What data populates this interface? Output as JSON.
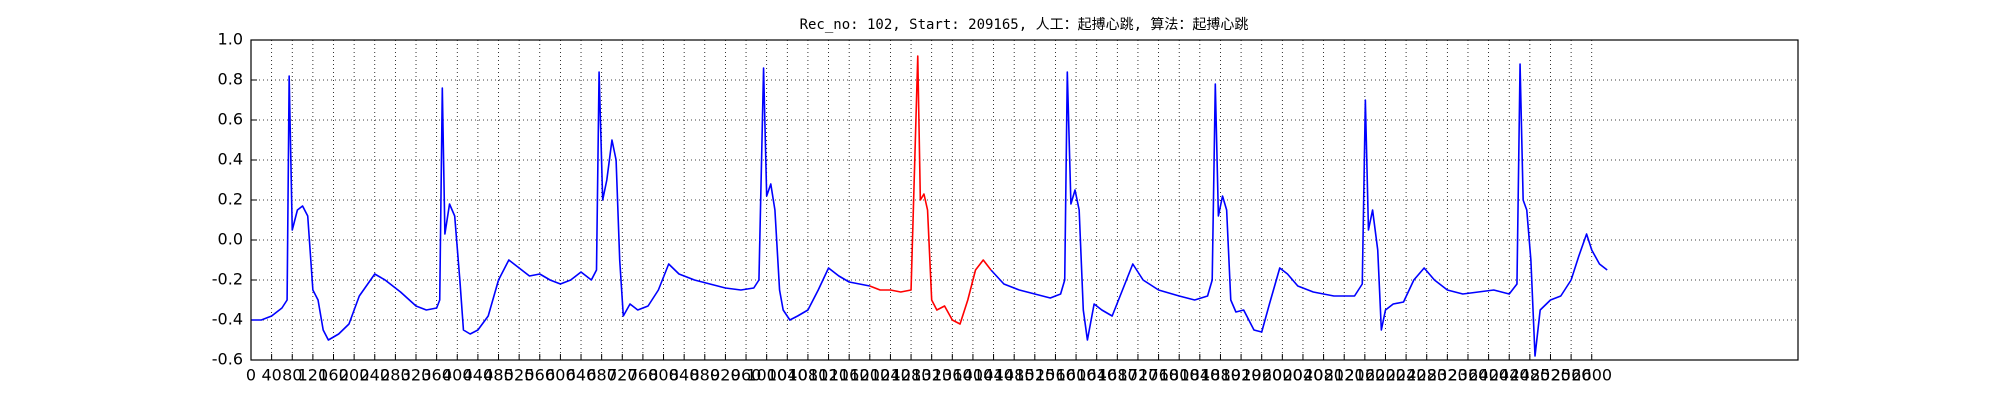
{
  "chart_data": {
    "type": "line",
    "title": "Rec_no: 102, Start: 209165, 人工：起搏心跳, 算法：起搏心跳",
    "xlim": [
      0,
      3000
    ],
    "xticks": [
      0,
      40,
      80,
      120,
      160,
      200,
      240,
      280,
      320,
      360,
      400,
      440,
      480,
      520,
      560,
      600,
      640,
      680,
      720,
      760,
      800,
      840,
      880,
      920,
      960,
      1000,
      1040,
      1080,
      1120,
      1160,
      1200,
      1240,
      1280,
      1320,
      1360,
      1400,
      1440,
      1480,
      1520,
      1560,
      1600,
      1640,
      1680,
      1720,
      1760,
      1800,
      1840,
      1880,
      1920,
      1960,
      2000,
      2040,
      2080,
      2120,
      2160,
      2200,
      2240,
      2280,
      2320,
      2360,
      2400,
      2440,
      2480,
      2520,
      2560,
      2600
    ],
    "ylim": [
      -0.6,
      1.0
    ],
    "yticks": [
      -0.6,
      -0.4,
      -0.2,
      {
        "value": 0,
        "label": "0.0"
      },
      0.2,
      0.4,
      0.6,
      0.8,
      {
        "value": 1,
        "label": "1.0"
      }
    ],
    "grid": true,
    "series": [
      {
        "color": "#0000ff",
        "x": [
          0,
          20,
          40,
          60,
          70,
          74,
          80,
          90,
          100,
          110,
          120,
          130,
          140,
          150,
          170,
          190,
          210,
          240,
          260,
          290,
          320,
          340,
          360,
          366,
          371,
          376,
          385,
          395,
          405,
          412,
          425,
          440,
          460,
          480,
          500,
          520,
          540,
          560,
          580,
          600,
          620,
          640,
          660,
          670,
          675,
          682,
          690,
          700,
          708,
          715,
          722,
          735,
          750,
          770,
          790,
          810,
          830,
          860,
          890,
          920,
          950,
          975,
          985,
          994,
          1000,
          1008,
          1016,
          1025,
          1032,
          1045,
          1060,
          1080,
          1100,
          1120,
          1140,
          1160,
          1180,
          1200,
          1300,
          1435,
          1460,
          1490,
          1520,
          1550,
          1570,
          1578,
          1583,
          1590,
          1598,
          1606,
          1614,
          1622,
          1635,
          1650,
          1670,
          1690,
          1710,
          1730,
          1760,
          1800,
          1830,
          1855,
          1864,
          1870,
          1876,
          1884,
          1892,
          1900,
          1910,
          1925,
          1945,
          1960,
          1975,
          1995,
          2010,
          2030,
          2060,
          2100,
          2140,
          2155,
          2161,
          2167,
          2175,
          2185,
          2192,
          2200,
          2215,
          2235,
          2255,
          2275,
          2295,
          2320,
          2350,
          2380,
          2410,
          2440,
          2455,
          2461,
          2467,
          2474,
          2482,
          2490,
          2500,
          2520,
          2540,
          2560,
          2575,
          2590,
          2600,
          2615,
          2630
        ],
        "values": [
          -0.4,
          -0.4,
          -0.38,
          -0.34,
          -0.3,
          0.82,
          0.05,
          0.15,
          0.17,
          0.12,
          -0.25,
          -0.3,
          -0.45,
          -0.5,
          -0.47,
          -0.42,
          -0.28,
          -0.17,
          -0.2,
          -0.26,
          -0.33,
          -0.35,
          -0.34,
          -0.3,
          0.76,
          0.03,
          0.18,
          0.12,
          -0.2,
          -0.45,
          -0.47,
          -0.45,
          -0.38,
          -0.2,
          -0.1,
          -0.14,
          -0.18,
          -0.17,
          -0.2,
          -0.22,
          -0.2,
          -0.16,
          -0.2,
          -0.15,
          0.84,
          0.2,
          0.3,
          0.5,
          0.4,
          -0.1,
          -0.38,
          -0.32,
          -0.35,
          -0.33,
          -0.25,
          -0.12,
          -0.17,
          -0.2,
          -0.22,
          -0.24,
          -0.25,
          -0.24,
          -0.2,
          0.86,
          0.22,
          0.28,
          0.15,
          -0.25,
          -0.35,
          -0.4,
          -0.38,
          -0.35,
          -0.25,
          -0.14,
          -0.18,
          -0.21,
          -0.22,
          -0.23,
          null,
          -0.15,
          -0.22,
          -0.25,
          -0.27,
          -0.29,
          -0.27,
          -0.2,
          0.84,
          0.18,
          0.25,
          0.15,
          -0.35,
          -0.5,
          -0.32,
          -0.35,
          -0.38,
          -0.25,
          -0.12,
          -0.2,
          -0.25,
          -0.28,
          -0.3,
          -0.28,
          -0.2,
          0.78,
          0.12,
          0.22,
          0.15,
          -0.3,
          -0.36,
          -0.35,
          -0.45,
          -0.46,
          -0.32,
          -0.14,
          -0.17,
          -0.23,
          -0.26,
          -0.28,
          -0.28,
          -0.22,
          0.7,
          0.05,
          0.15,
          -0.05,
          -0.45,
          -0.35,
          -0.32,
          -0.31,
          -0.2,
          -0.14,
          -0.2,
          -0.25,
          -0.27,
          -0.26,
          -0.25,
          -0.27,
          -0.22,
          0.88,
          0.2,
          0.15,
          -0.1,
          -0.58,
          -0.35,
          -0.3,
          -0.28,
          -0.2,
          -0.08,
          0.03,
          -0.05,
          -0.12,
          -0.15
        ]
      },
      {
        "color": "#ff0000",
        "x": [
          1200,
          1220,
          1240,
          1260,
          1280,
          1293,
          1298,
          1305,
          1312,
          1320,
          1330,
          1345,
          1360,
          1375,
          1390,
          1405,
          1420,
          1435
        ],
        "values": [
          -0.23,
          -0.25,
          -0.25,
          -0.26,
          -0.25,
          0.92,
          0.2,
          0.23,
          0.15,
          -0.3,
          -0.35,
          -0.33,
          -0.4,
          -0.42,
          -0.3,
          -0.15,
          -0.1,
          -0.15
        ]
      }
    ]
  }
}
